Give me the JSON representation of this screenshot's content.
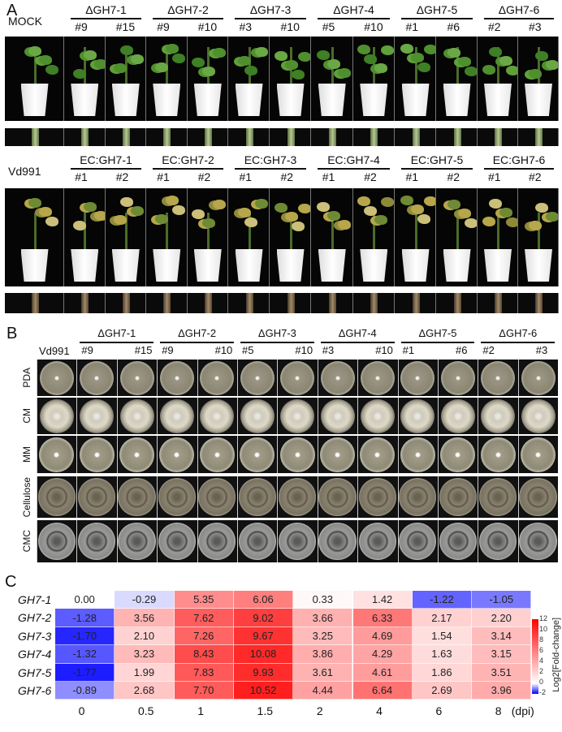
{
  "panel_a": {
    "label": "A",
    "top": {
      "control": "MOCK",
      "groups": [
        {
          "label": "ΔGH7-1",
          "lines": [
            "#9",
            "#15"
          ]
        },
        {
          "label": "ΔGH7-2",
          "lines": [
            "#9",
            "#10"
          ]
        },
        {
          "label": "ΔGH7-3",
          "lines": [
            "#3",
            "#10"
          ]
        },
        {
          "label": "ΔGH7-4",
          "lines": [
            "#5",
            "#10"
          ]
        },
        {
          "label": "ΔGH7-5",
          "lines": [
            "#1",
            "#6"
          ]
        },
        {
          "label": "ΔGH7-6",
          "lines": [
            "#2",
            "#3"
          ]
        }
      ]
    },
    "bottom": {
      "control": "Vd991",
      "groups": [
        {
          "label": "EC:GH7-1",
          "lines": [
            "#1",
            "#2"
          ]
        },
        {
          "label": "EC:GH7-2",
          "lines": [
            "#1",
            "#2"
          ]
        },
        {
          "label": "EC:GH7-3",
          "lines": [
            "#1",
            "#2"
          ]
        },
        {
          "label": "EC:GH7-4",
          "lines": [
            "#1",
            "#2"
          ]
        },
        {
          "label": "EC:GH7-5",
          "lines": [
            "#1",
            "#2"
          ]
        },
        {
          "label": "EC:GH7-6",
          "lines": [
            "#1",
            "#2"
          ]
        }
      ]
    }
  },
  "panel_b": {
    "label": "B",
    "control": "Vd991",
    "groups": [
      {
        "label": "ΔGH7-1",
        "lines": [
          "#9",
          "#15"
        ]
      },
      {
        "label": "ΔGH7-2",
        "lines": [
          "#9",
          "#10"
        ]
      },
      {
        "label": "ΔGH7-3",
        "lines": [
          "#5",
          "#10"
        ]
      },
      {
        "label": "ΔGH7-4",
        "lines": [
          "#3",
          "#10"
        ]
      },
      {
        "label": "ΔGH7-5",
        "lines": [
          "#1",
          "#6"
        ]
      },
      {
        "label": "ΔGH7-6",
        "lines": [
          "#2",
          "#3"
        ]
      }
    ],
    "media": [
      "PDA",
      "CM",
      "MM",
      "Cellulose",
      "CMC"
    ]
  },
  "panel_c": {
    "label": "C"
  },
  "chart_data": {
    "type": "heatmap",
    "rows": [
      "GH7-1",
      "GH7-2",
      "GH7-3",
      "GH7-4",
      "GH7-5",
      "GH7-6"
    ],
    "columns": [
      "0",
      "0.5",
      "1",
      "1.5",
      "2",
      "4",
      "6",
      "8"
    ],
    "x_unit": "(dpi)",
    "values": [
      [
        0.0,
        -0.29,
        5.35,
        6.06,
        0.33,
        1.42,
        -1.22,
        -1.05
      ],
      [
        -1.28,
        3.56,
        7.62,
        9.02,
        3.66,
        6.33,
        2.17,
        2.2
      ],
      [
        -1.7,
        2.1,
        7.26,
        9.67,
        3.25,
        4.69,
        1.54,
        3.14
      ],
      [
        -1.32,
        3.23,
        8.43,
        10.08,
        3.86,
        4.29,
        1.63,
        3.15
      ],
      [
        -1.77,
        1.99,
        7.83,
        9.93,
        3.61,
        4.61,
        1.86,
        3.51
      ],
      [
        -0.89,
        2.68,
        7.7,
        10.52,
        4.44,
        6.64,
        2.69,
        3.96
      ]
    ],
    "labels": [
      [
        "0.00",
        "-0.29",
        "5.35",
        "6.06",
        "0.33",
        "1.42",
        "-1.22",
        "-1.05"
      ],
      [
        "-1.28",
        "3.56",
        "7.62",
        "9.02",
        "3.66",
        "6.33",
        "2.17",
        "2.20"
      ],
      [
        "-1.70",
        "2.10",
        "7.26",
        "9.67",
        "3.25",
        "4.69",
        "1.54",
        "3.14"
      ],
      [
        "-1.32",
        "3.23",
        "8.43",
        "10.08",
        "3.86",
        "4.29",
        "1.63",
        "3.15"
      ],
      [
        "-1.77",
        "1.99",
        "7.83",
        "9.93",
        "3.61",
        "4.61",
        "1.86",
        "3.51"
      ],
      [
        "-0.89",
        "2.68",
        "7.70",
        "10.52",
        "4.44",
        "6.64",
        "2.69",
        "3.96"
      ]
    ],
    "colorbar": {
      "title": "Log2[Fold-change]",
      "range": [
        -2,
        12
      ],
      "ticks": [
        "12",
        "10",
        "8",
        "6",
        "4",
        "2",
        "0",
        "-2"
      ],
      "low_color": "#0000ff",
      "mid_color": "#ffffff",
      "high_color": "#ff0000"
    }
  }
}
